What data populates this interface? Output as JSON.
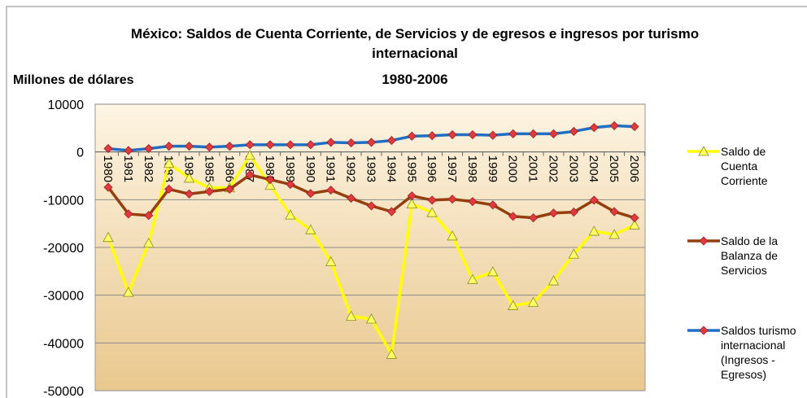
{
  "chart_data": {
    "type": "line",
    "title": "México: Saldos de Cuenta Corriente,  de Servicios y  de egresos e ingresos por turismo internacional",
    "subtitle": "1980-2006",
    "y_label": "Millones de dólares",
    "categories": [
      "1980",
      "1981",
      "1982",
      "1983",
      "1984",
      "1985",
      "1986",
      "1987",
      "1988",
      "1989",
      "1990",
      "1991",
      "1992",
      "1993",
      "1994",
      "1995",
      "1996",
      "1997",
      "1998",
      "1999",
      "2000",
      "2001",
      "2002",
      "2003",
      "2004",
      "2005",
      "2006"
    ],
    "series": [
      {
        "name": "Saldo de Cuenta Corriente",
        "color": "#ffff00",
        "marker": "triangle",
        "marker_color": "#ffff66",
        "values": [
          -17900,
          -29400,
          -19100,
          -2400,
          -5500,
          -7500,
          -7500,
          -700,
          -7000,
          -13200,
          -16300,
          -23000,
          -34400,
          -35000,
          -42400,
          -10900,
          -12700,
          -17600,
          -26700,
          -25100,
          -32200,
          -31500,
          -27000,
          -21400,
          -16600,
          -17300,
          -15300
        ]
      },
      {
        "name": "Saldo de la Balanza de Servicios",
        "color": "#953f0f",
        "marker": "diamond",
        "marker_color": "#e03a3e",
        "values": [
          -7400,
          -13000,
          -13300,
          -7800,
          -8800,
          -8300,
          -7800,
          -4800,
          -5800,
          -6800,
          -8700,
          -8000,
          -9700,
          -11300,
          -12500,
          -9200,
          -10100,
          -9900,
          -10400,
          -11100,
          -13500,
          -13800,
          -12800,
          -12600,
          -10100,
          -12500,
          -13800
        ]
      },
      {
        "name": "Saldos turismo internacional (Ingresos - Egresos)",
        "color": "#1f6fc5",
        "marker": "diamond",
        "marker_color": "#e03a3e",
        "values": [
          700,
          300,
          700,
          1200,
          1200,
          1000,
          1200,
          1500,
          1500,
          1500,
          1500,
          2000,
          1900,
          2000,
          2400,
          3300,
          3400,
          3600,
          3600,
          3500,
          3800,
          3800,
          3800,
          4300,
          5100,
          5500,
          5300
        ]
      }
    ],
    "ylim": [
      -50000,
      10000
    ],
    "yticks": [
      -50000,
      -40000,
      -30000,
      -20000,
      -10000,
      0,
      10000
    ],
    "grid": true
  }
}
